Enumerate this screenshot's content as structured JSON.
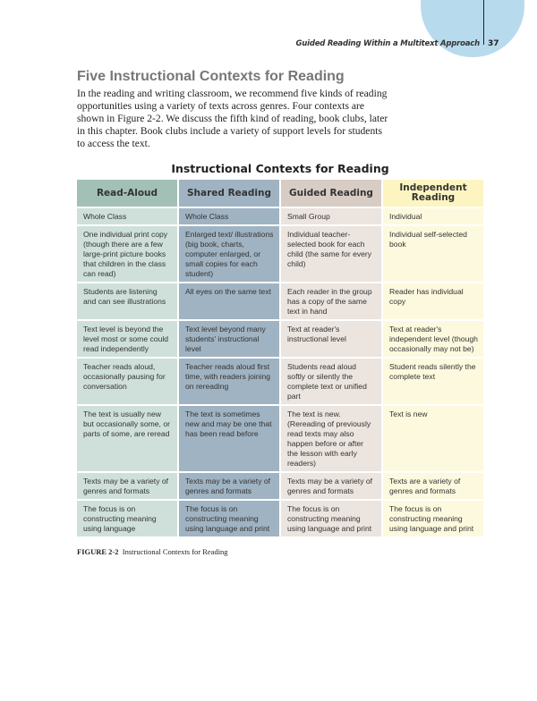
{
  "header": {
    "running_title": "Guided Reading Within a Multitext Approach",
    "page_number": "37"
  },
  "section": {
    "heading": "Five Instructional Contexts for Reading",
    "paragraph": "In the reading and writing classroom, we recommend five kinds of reading opportunities using a variety of texts across genres. Four contexts are shown in Figure 2-2. We discuss the fifth kind of reading, book clubs, later in this chapter. Book clubs include a variety of support levels for students to access the text."
  },
  "table": {
    "title": "Instructional Contexts for Reading",
    "columns": [
      "Read-Aloud",
      "Shared Reading",
      "Guided Reading",
      "Independent Reading"
    ],
    "column_colors": [
      "#a2c0b6",
      "#a0b3c2",
      "#d8cdc4",
      "#fcf5c2"
    ],
    "rows": [
      [
        "Whole Class",
        "Whole Class",
        "Small Group",
        "Individual"
      ],
      [
        "One individual print copy (though there are a few large-print picture books that children in the class can read)",
        "Enlarged text/ illustrations (big book, charts, computer enlarged, or small copies for each student)",
        "Individual teacher-selected book for each child (the same for every child)",
        "Individual self-selected book"
      ],
      [
        "Students are listening and can see illustrations",
        "All eyes on the same text",
        "Each reader in the group has a copy of the same text in hand",
        "Reader has individual copy"
      ],
      [
        "Text level is beyond the level most or some could read independently",
        "Text level beyond many students' instructional level",
        "Text at reader's instructional level",
        "Text at reader's independent level (though occasionally may not be)"
      ],
      [
        "Teacher reads aloud, occasionally pausing for conversation",
        "Teacher reads aloud first time, with readers joining on rereading",
        "Students read aloud softly or silently the complete text or unified part",
        "Student reads silently the complete text"
      ],
      [
        "The text is usually new but occasionally some, or parts of some, are reread",
        "The text is sometimes new and may be one that has been read before",
        "The text is new. (Rereading of previously read texts may also happen before or after the lesson with early readers)",
        "Text is new"
      ],
      [
        "Texts may be a variety of genres and formats",
        "Texts may be a variety of genres and formats",
        "Texts may be a variety of genres and formats",
        "Texts are a variety of genres and formats"
      ],
      [
        "The focus is on constructing meaning using language",
        "The focus is on constructing meaning using language and print",
        "The focus is on constructing meaning using language and print",
        "The focus is on constructing meaning using language and print"
      ]
    ]
  },
  "figure": {
    "label": "FIGURE 2-2",
    "caption": "Instructional Contexts for Reading"
  }
}
